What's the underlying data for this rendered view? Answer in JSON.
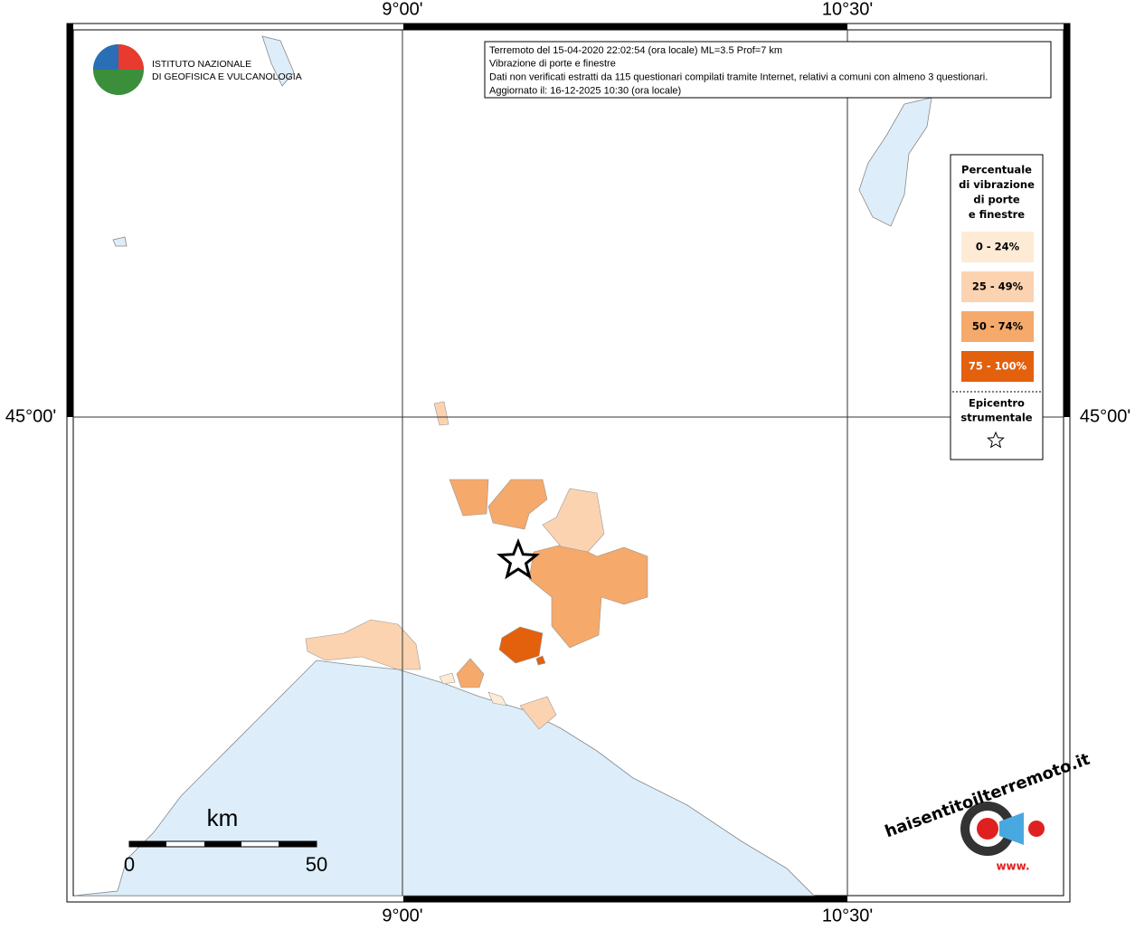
{
  "grid_labels": {
    "lon_west": "9°00'",
    "lon_east": "10°30'",
    "lat": "45°00'"
  },
  "logo": {
    "line1": "ISTITUTO NAZIONALE",
    "line2": "DI GEOFISICA E VULCANOLOGIA"
  },
  "header": {
    "lines": [
      "Terremoto del 15-04-2020 22:02:54 (ora locale) ML=3.5 Prof=7 km",
      "Vibrazione di porte e finestre",
      "Dati non verificati estratti da 115 questionari compilati tramite Internet, relativi a comuni con almeno 3 questionari.",
      "Aggiornato il: 16-12-2025 10:30 (ora locale)"
    ]
  },
  "legend": {
    "title": [
      "Percentuale",
      "di vibrazione",
      "di porte",
      "e finestre"
    ],
    "classes": [
      {
        "label": "0 - 24%",
        "color": "#fdebd6"
      },
      {
        "label": "25 - 49%",
        "color": "#fcd3b0"
      },
      {
        "label": "50 - 74%",
        "color": "#f5a96a"
      },
      {
        "label": "75 - 100%",
        "color": "#e3600d"
      }
    ],
    "epicenter": [
      "Epicentro",
      "strumentale"
    ]
  },
  "scale": {
    "unit": "km",
    "start": "0",
    "end": "50"
  },
  "site_logo": {
    "text": "haisentitoilterremoto.it",
    "prefix": "www."
  }
}
